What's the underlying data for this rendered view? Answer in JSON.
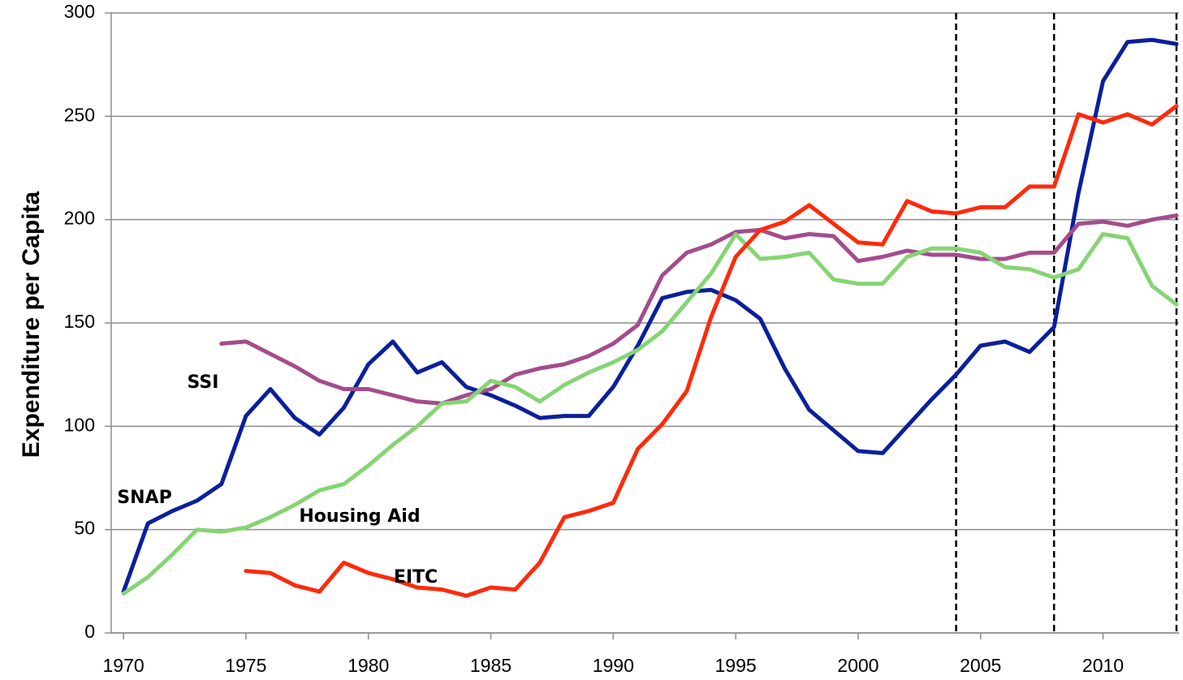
{
  "chart_data": {
    "type": "line",
    "y_label": "Expenditure per Capita",
    "x": [
      1970,
      1971,
      1972,
      1973,
      1974,
      1975,
      1976,
      1977,
      1978,
      1979,
      1980,
      1981,
      1982,
      1983,
      1984,
      1985,
      1986,
      1987,
      1988,
      1989,
      1990,
      1991,
      1992,
      1993,
      1994,
      1995,
      1996,
      1997,
      1998,
      1999,
      2000,
      2001,
      2002,
      2003,
      2004,
      2005,
      2006,
      2007,
      2008,
      2009,
      2010,
      2011,
      2012,
      2013
    ],
    "series": [
      {
        "name": "SNAP",
        "color": "#0a1f9c",
        "values": [
          20,
          53,
          59,
          64,
          72,
          105,
          118,
          104,
          96,
          109,
          130,
          141,
          126,
          131,
          119,
          115,
          110,
          104,
          105,
          105,
          119,
          139,
          162,
          165,
          166,
          161,
          152,
          128,
          108,
          98,
          88,
          87,
          100,
          113,
          125,
          139,
          141,
          136,
          148,
          213,
          267,
          286,
          287,
          285
        ]
      },
      {
        "name": "SSI",
        "color": "#a44c8c",
        "values": [
          null,
          null,
          null,
          null,
          140,
          141,
          135,
          129,
          122,
          118,
          118,
          115,
          112,
          111,
          115,
          118,
          125,
          128,
          130,
          134,
          140,
          149,
          173,
          184,
          188,
          194,
          195,
          191,
          193,
          192,
          180,
          182,
          185,
          183,
          183,
          181,
          181,
          184,
          184,
          198,
          199,
          197,
          200,
          202
        ]
      },
      {
        "name": "Housing Aid",
        "color": "#86d474",
        "values": [
          19,
          27,
          38,
          50,
          49,
          51,
          56,
          62,
          69,
          72,
          81,
          91,
          100,
          111,
          112,
          122,
          119,
          112,
          120,
          126,
          131,
          137,
          146,
          160,
          174,
          193,
          181,
          182,
          184,
          171,
          169,
          169,
          182,
          186,
          186,
          184,
          177,
          176,
          172,
          176,
          193,
          191,
          168,
          159
        ]
      },
      {
        "name": "EITC",
        "color": "#ff2a0a",
        "values": [
          null,
          null,
          null,
          null,
          null,
          30,
          29,
          23,
          20,
          34,
          29,
          26,
          22,
          21,
          18,
          22,
          21,
          34,
          56,
          59,
          63,
          89,
          101,
          117,
          153,
          182,
          195,
          199,
          207,
          198,
          189,
          188,
          209,
          204,
          203,
          206,
          206,
          216,
          216,
          251,
          247,
          251,
          246,
          255
        ]
      }
    ],
    "xlim": [
      1969.5,
      2013.1
    ],
    "xticks": [
      1970,
      1975,
      1980,
      1985,
      1990,
      1995,
      2000,
      2005,
      2010
    ],
    "ylim": [
      0,
      300
    ],
    "yticks": [
      0,
      50,
      100,
      150,
      200,
      250,
      300
    ],
    "grid": true,
    "vlines": [
      2004,
      2008,
      2013
    ]
  }
}
